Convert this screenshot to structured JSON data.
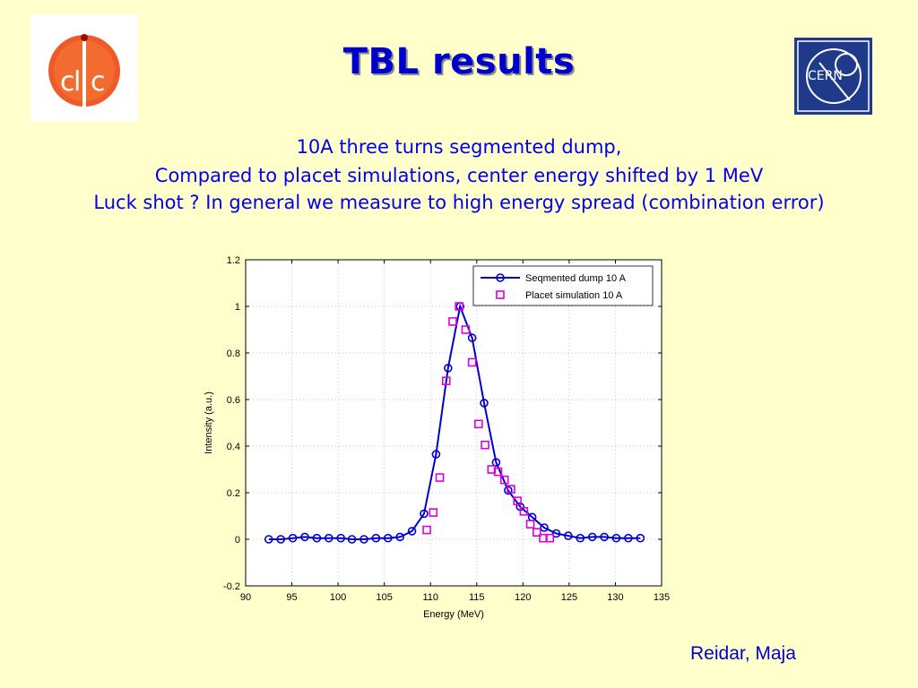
{
  "slide": {
    "title": "TBL results",
    "subtitle_lines": [
      "10A three turns segmented dump,",
      "Compared to placet simulations, center energy shifted by 1 MeV",
      "Luck shot ? In general we measure to high energy spread (combination error)"
    ],
    "author": "Reidar, Maja",
    "logos": {
      "left": "clic-logo",
      "right": "cern-logo"
    },
    "colors": {
      "background": "#ffffcc",
      "title": "#0000cc",
      "subtitle": "#0000ee",
      "series1": "#0000cc",
      "series2": "#dd00dd"
    }
  },
  "chart_data": {
    "type": "line",
    "xlabel": "Energy (MeV)",
    "ylabel": "Intensity (a.u.)",
    "xlim": [
      90,
      135
    ],
    "ylim": [
      -0.2,
      1.2
    ],
    "xticks": [
      90,
      95,
      100,
      105,
      110,
      115,
      120,
      125,
      130,
      135
    ],
    "yticks": [
      -0.2,
      0,
      0.2,
      0.4,
      0.6,
      0.8,
      1,
      1.2
    ],
    "xtick_labels": [
      "90",
      "95",
      "100",
      "105",
      "110",
      "115",
      "120",
      "125",
      "130",
      "135"
    ],
    "ytick_labels": [
      "-0.2",
      "0",
      "0.2",
      "0.4",
      "0.6",
      "0.8",
      "1",
      "1.2"
    ],
    "grid": true,
    "legend_position": "top-right",
    "series": [
      {
        "name": "Seqmented dump 10 A",
        "style": "line-circle",
        "color": "#0000cc",
        "x": [
          92.5,
          93.8,
          95.1,
          96.4,
          97.7,
          99.0,
          100.3,
          101.5,
          102.8,
          104.1,
          105.4,
          106.7,
          108.0,
          109.3,
          110.6,
          111.9,
          113.2,
          114.5,
          115.8,
          117.1,
          118.4,
          119.7,
          121.0,
          122.3,
          123.6,
          124.9,
          126.2,
          127.5,
          128.8,
          130.1,
          131.4,
          132.7
        ],
        "y": [
          0.0,
          0.0,
          0.005,
          0.01,
          0.005,
          0.005,
          0.005,
          0.0,
          0.0,
          0.005,
          0.005,
          0.01,
          0.035,
          0.11,
          0.365,
          0.735,
          1.0,
          0.865,
          0.585,
          0.33,
          0.21,
          0.14,
          0.095,
          0.05,
          0.025,
          0.015,
          0.005,
          0.01,
          0.01,
          0.005,
          0.005,
          0.005
        ]
      },
      {
        "name": "Placet simulation 10 A",
        "style": "square",
        "color": "#dd00dd",
        "x": [
          109.6,
          110.3,
          111.0,
          111.7,
          112.4,
          113.1,
          113.8,
          114.5,
          115.2,
          115.9,
          116.6,
          117.3,
          118.0,
          118.7,
          119.4,
          120.1,
          120.8,
          121.5,
          122.2,
          122.9
        ],
        "y": [
          0.04,
          0.115,
          0.265,
          0.68,
          0.935,
          1.0,
          0.9,
          0.76,
          0.495,
          0.405,
          0.3,
          0.29,
          0.255,
          0.215,
          0.165,
          0.12,
          0.065,
          0.03,
          0.005,
          0.005
        ]
      }
    ]
  }
}
